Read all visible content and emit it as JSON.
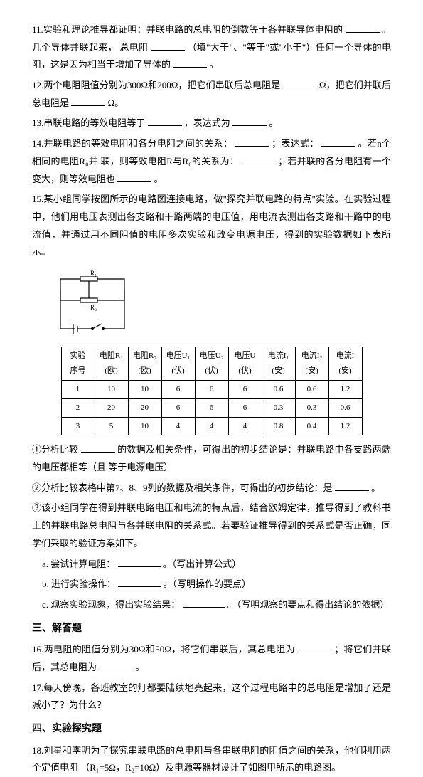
{
  "q11": {
    "text_a": "11.实验和理论推导都证明：并联电路的总电阻的倒数等于各并联导体电阻的",
    "text_b": "。几个导体并联起来，",
    "text_c": "总电阻",
    "text_d": "（填\"大于\"、\"等于\"或\"小于\"）任何一个导体的电阻，这是因为相当于增加了导体的",
    "text_e": "。"
  },
  "q12": {
    "text_a": "12.两个电阻阻值分别为300Ω和200Ω，把它们串联后总电阻是",
    "text_b": "Ω，把它们并联后总电阻是",
    "text_c": "Ω。"
  },
  "q13": {
    "text_a": "13.串联电路的等效电阻等于",
    "text_b": "，表达式为",
    "text_c": "。"
  },
  "q14": {
    "text_a": "14.并联电路的等效电阻和各分电阻之间的关系：",
    "text_b": "；表达式：",
    "text_c": "。若n个相同的电阻R₀并",
    "text_d": "联，则等效电阻R与R₀的关系为：",
    "text_e": "；若并联的各分电阻有一个变大，则等效电阻也",
    "text_f": "。"
  },
  "q15": {
    "intro": "15.某小组同学按图所示的电路图连接电路，做\"探究并联电路的特点\"实验。在实验过程中，他们用电压表测出各支路和干路两端的电压值，用电流表测出各支路和干路中的电流值，并通过用不同阻值的电阻多次实验和改变电源电压，得到的实验数据如下表所示。",
    "table": {
      "headers": [
        "实验\n序号",
        "电阻R₁\n(欧)",
        "电阻R₂\n(欧)",
        "电压U₁\n(伏)",
        "电压U₂\n(伏)",
        "电压U\n(伏)",
        "电流I₁\n(安)",
        "电流I₂\n(安)",
        "电流I\n(安)"
      ],
      "rows": [
        [
          "1",
          "10",
          "10",
          "6",
          "6",
          "6",
          "0.6",
          "0.6",
          "1.2"
        ],
        [
          "2",
          "20",
          "20",
          "6",
          "6",
          "6",
          "0.3",
          "0.3",
          "0.6"
        ],
        [
          "3",
          "5",
          "10",
          "4",
          "4",
          "4",
          "0.8",
          "0.4",
          "1.2"
        ]
      ]
    },
    "c1_a": "①分析比较",
    "c1_b": "的数据及相关条件，可得出的初步结论是：并联电路中各支路两端的电压都相等（且",
    "c1_c": "等于电源电压）",
    "c2_a": "②分析比较表格中第7、8、9列的数据及相关条件，可得出的初步结论：是",
    "c2_b": "。",
    "c3": "③该小组同学在得到并联电路电压和电流的特点后，结合欧姆定律，推导得到了教科书上的并联电路总电阻与各并联电阻的关系式。若要验证推导得到的关系式是否正确，同学们采取的验证方案如下。",
    "a_a": "a. 尝试计算电阻：",
    "a_b": "。（写出计算公式）",
    "b_a": "b. 进行实验操作：",
    "b_b": "。（写明操作的要点）",
    "c_a": "c. 观察实验现象，得出实验结果：",
    "c_b": "。（写明观察的要点和得出结论的依据）"
  },
  "sec3": "三、解答题",
  "q16": {
    "text_a": "16.两电阻的阻值分别为30Ω和50Ω，将它们串联后，其总电阻为",
    "text_b": "；将它们并联后，其总电阻为",
    "text_c": "。"
  },
  "q17": "17.每天傍晚，各班教室的灯都要陆续地亮起来，这个过程电路中的总电阻是增加了还是减小了？为什么？",
  "sec4": "四、实验探究题",
  "q18": {
    "text_a": "18.刘星和李明为了探究串联电路的总电阻与各串联电阻的阻值之间的关系，他们利用两个定值电阻",
    "text_b": "（R₁=5Ω，R₂=10Ω）及电源等器材设计了如图甲所示的电路图。"
  }
}
